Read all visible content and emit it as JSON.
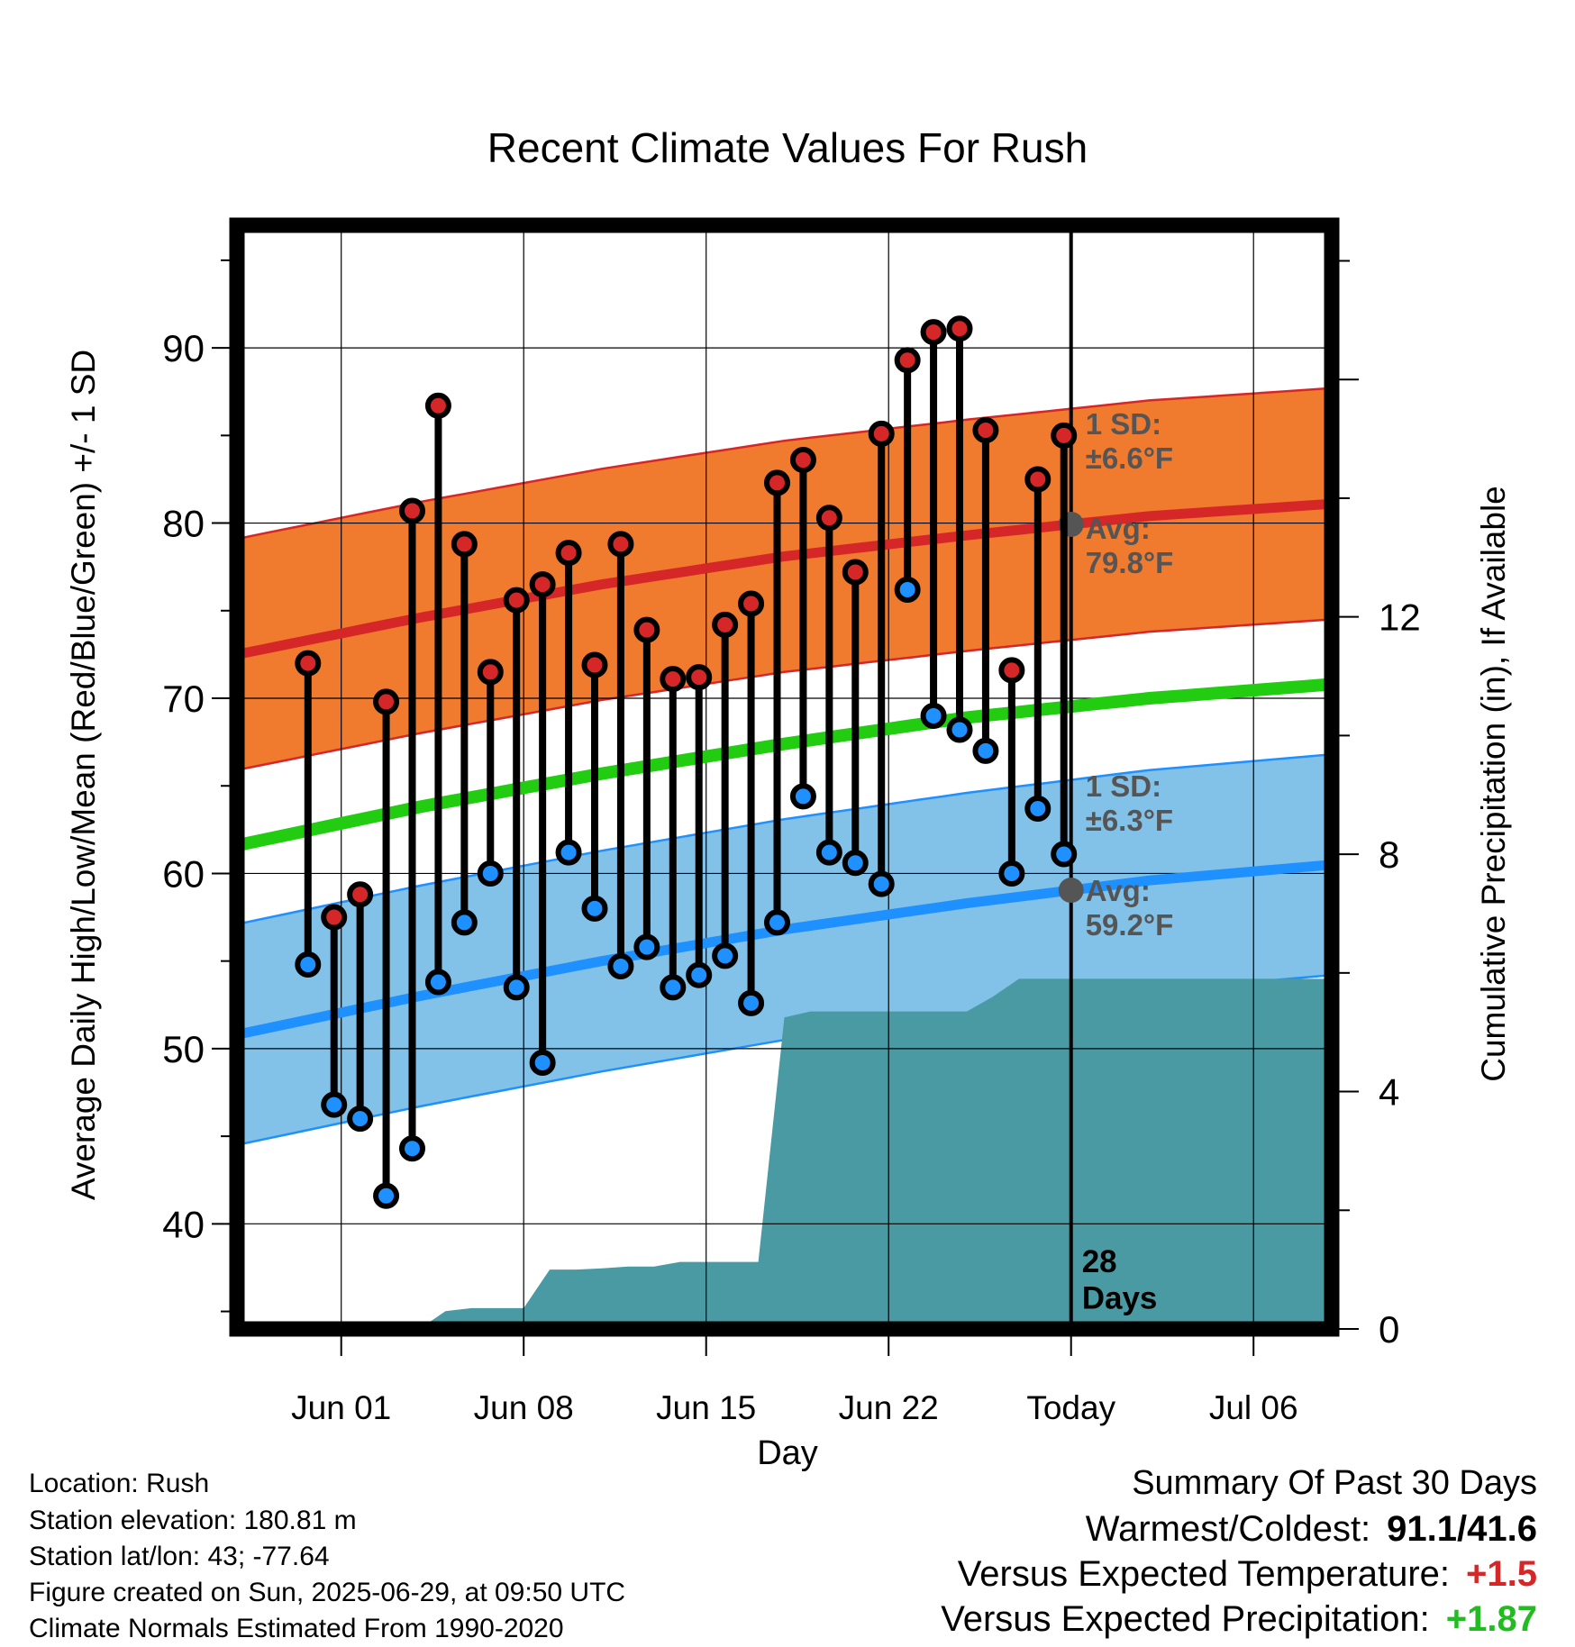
{
  "chart_data": {
    "type": "line",
    "title": "Recent Climate Values For Rush",
    "xlabel": "Day",
    "ylabel": "Average Daily High/Low/Mean (Red/Blue/Green) +/- 1 SD",
    "y2label": "Cumulative Precipitation (in), If Available",
    "x_range": [
      "2025-05-28",
      "2025-07-09"
    ],
    "ylim": [
      34,
      97
    ],
    "y2lim": [
      0,
      18.6
    ],
    "yticks": [
      40,
      50,
      60,
      70,
      80,
      90
    ],
    "y2ticks": [
      0,
      4,
      8,
      12
    ],
    "x_tick_labels": [
      {
        "date": "2025-06-01",
        "label": "Jun 01"
      },
      {
        "date": "2025-06-08",
        "label": "Jun 08"
      },
      {
        "date": "2025-06-15",
        "label": "Jun 15"
      },
      {
        "date": "2025-06-22",
        "label": "Jun 22"
      },
      {
        "date": "2025-06-29",
        "label": "Today"
      },
      {
        "date": "2025-07-06",
        "label": "Jul 06"
      }
    ],
    "grid": true,
    "today": "2025-06-29",
    "today_label": "28\nDays",
    "normal_high": {
      "dates": [
        "2025-05-28",
        "2025-06-04",
        "2025-06-11",
        "2025-06-18",
        "2025-06-25",
        "2025-07-02",
        "2025-07-09"
      ],
      "mean": [
        72.5,
        74.6,
        76.5,
        78.1,
        79.3,
        80.4,
        81.1
      ],
      "sd": 6.6,
      "sd_label": "1 SD:\n±6.6°F",
      "avg_label": "Avg:\n79.8°F",
      "color": "#d62728",
      "band_color": "#f07a2e"
    },
    "normal_low": {
      "dates": [
        "2025-05-28",
        "2025-06-04",
        "2025-06-11",
        "2025-06-18",
        "2025-06-25",
        "2025-07-02",
        "2025-07-09"
      ],
      "mean": [
        50.8,
        53.0,
        55.0,
        56.8,
        58.3,
        59.6,
        60.5
      ],
      "sd": 6.3,
      "sd_label": "1 SD:\n±6.3°F",
      "avg_label": "Avg:\n59.2°F",
      "color": "#1e90ff",
      "band_color": "#82c1e8"
    },
    "normal_mean": {
      "dates": [
        "2025-05-28",
        "2025-06-04",
        "2025-06-11",
        "2025-06-18",
        "2025-06-25",
        "2025-07-02",
        "2025-07-09"
      ],
      "values": [
        61.6,
        63.8,
        65.7,
        67.4,
        68.9,
        70.0,
        70.8
      ],
      "color": "#22cc11"
    },
    "observed": {
      "dates": [
        "2025-05-31",
        "2025-06-01",
        "2025-06-02",
        "2025-06-03",
        "2025-06-04",
        "2025-06-05",
        "2025-06-06",
        "2025-06-07",
        "2025-06-08",
        "2025-06-09",
        "2025-06-10",
        "2025-06-11",
        "2025-06-12",
        "2025-06-13",
        "2025-06-14",
        "2025-06-15",
        "2025-06-16",
        "2025-06-17",
        "2025-06-18",
        "2025-06-19",
        "2025-06-20",
        "2025-06-21",
        "2025-06-22",
        "2025-06-23",
        "2025-06-24",
        "2025-06-25",
        "2025-06-26",
        "2025-06-27",
        "2025-06-28"
      ],
      "high": [
        72.0,
        57.5,
        58.8,
        69.8,
        80.7,
        86.7,
        78.8,
        71.5,
        75.6,
        76.5,
        78.3,
        71.9,
        78.8,
        73.9,
        71.1,
        71.2,
        74.2,
        75.4,
        82.3,
        83.6,
        80.3,
        77.2,
        85.1,
        89.3,
        90.9,
        91.1,
        85.3,
        71.6,
        82.5
      ],
      "low": [
        54.8,
        46.8,
        46.0,
        41.6,
        44.3,
        53.8,
        57.2,
        60.0,
        53.5,
        49.2,
        61.2,
        58.0,
        54.7,
        55.8,
        53.5,
        54.2,
        55.3,
        52.6,
        57.2,
        64.4,
        61.2,
        60.6,
        59.4,
        76.2,
        69.0,
        68.2,
        67.0,
        60.0,
        63.7
      ],
      "high_color": "#d62728",
      "low_color": "#1e90ff"
    },
    "observed_extra": {
      "date": "2025-06-29",
      "high": 85.0,
      "low": 61.1
    },
    "precipitation": {
      "dates": [
        "2025-05-28",
        "2025-06-04",
        "2025-06-05",
        "2025-06-06",
        "2025-06-07",
        "2025-06-08",
        "2025-06-09",
        "2025-06-10",
        "2025-06-11",
        "2025-06-12",
        "2025-06-13",
        "2025-06-14",
        "2025-06-15",
        "2025-06-16",
        "2025-06-17",
        "2025-06-18",
        "2025-06-19",
        "2025-06-20",
        "2025-06-25",
        "2025-06-26",
        "2025-06-27",
        "2025-07-09"
      ],
      "cumulative": [
        0,
        0,
        0.3,
        0.35,
        0.35,
        0.35,
        1.0,
        1.0,
        1.02,
        1.05,
        1.05,
        1.13,
        1.13,
        1.13,
        1.13,
        5.25,
        5.35,
        5.35,
        5.35,
        5.6,
        5.9,
        5.9
      ],
      "color": "#4a9aa4"
    }
  },
  "footer": {
    "location": "Location: Rush",
    "elevation": "Station elevation: 180.81 m",
    "latlon": "Station lat/lon: 43; -77.64",
    "created": "Figure created on Sun, 2025-06-29, at 09:50 UTC",
    "normals": "Climate Normals Estimated From 1990-2020"
  },
  "summary": {
    "title": "Summary Of Past 30 Days",
    "warmest_coldest_label": "Warmest/Coldest:",
    "warmest_coldest_value": "91.1/41.6",
    "temp_label": "Versus Expected Temperature:",
    "temp_value": "+1.5",
    "temp_color": "#d62728",
    "precip_label": "Versus Expected Precipitation:",
    "precip_value": "+1.87",
    "precip_color": "#22bb22"
  }
}
